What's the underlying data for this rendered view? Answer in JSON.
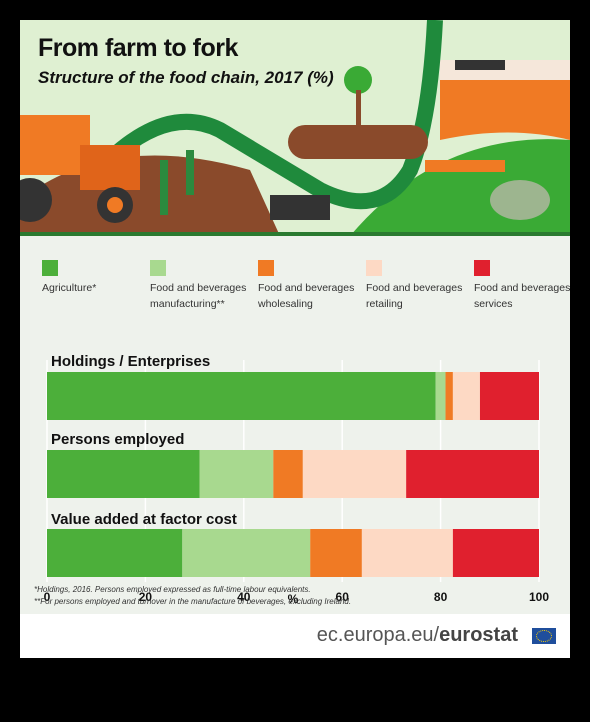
{
  "header": {
    "title": "From farm to fork",
    "subtitle": "Structure of the food chain, 2017 (%)"
  },
  "footer": {
    "source_prefix": "ec.europa.eu/",
    "source_brand": "eurostat"
  },
  "notes": {
    "line1": "*Holdings, 2016. Persons employed expressed as full-time labour equivalents.",
    "line2": "**For persons employed and turnover in the manufacture of beverages, excluding Ireland."
  },
  "legend": [
    {
      "label": "Agriculture*",
      "color": "#4caf3a"
    },
    {
      "label": "Food and beverages\nmanufacturing**",
      "color": "#a8d98f"
    },
    {
      "label": "Food and beverages\nwholesaling",
      "color": "#f07a24"
    },
    {
      "label": "Food and beverages\nretailing",
      "color": "#fdd9c4"
    },
    {
      "label": "Food and beverages\nservices",
      "color": "#e0202e"
    }
  ],
  "chart_data": {
    "type": "bar",
    "orientation": "horizontal",
    "stacked": true,
    "title": "Structure of the food chain, 2017 (%)",
    "xlabel": "%",
    "xlim": [
      0,
      100
    ],
    "xticks": [
      0,
      20,
      40,
      60,
      80,
      100
    ],
    "categories": [
      "Holdings / Enterprises",
      "Persons employed",
      "Value added at factor cost"
    ],
    "series": [
      {
        "name": "Agriculture*",
        "color": "#4caf3a",
        "values": [
          79,
          31,
          27.5
        ]
      },
      {
        "name": "Food and beverages manufacturing**",
        "color": "#a8d98f",
        "values": [
          2,
          15,
          26
        ]
      },
      {
        "name": "Food and beverages wholesaling",
        "color": "#f07a24",
        "values": [
          1.5,
          6,
          10.5
        ]
      },
      {
        "name": "Food and beverages retailing",
        "color": "#fdd9c4",
        "values": [
          5.5,
          21,
          18.5
        ]
      },
      {
        "name": "Food and beverages services",
        "color": "#e0202e",
        "values": [
          12,
          27,
          17.5
        ]
      }
    ],
    "grid": true
  }
}
